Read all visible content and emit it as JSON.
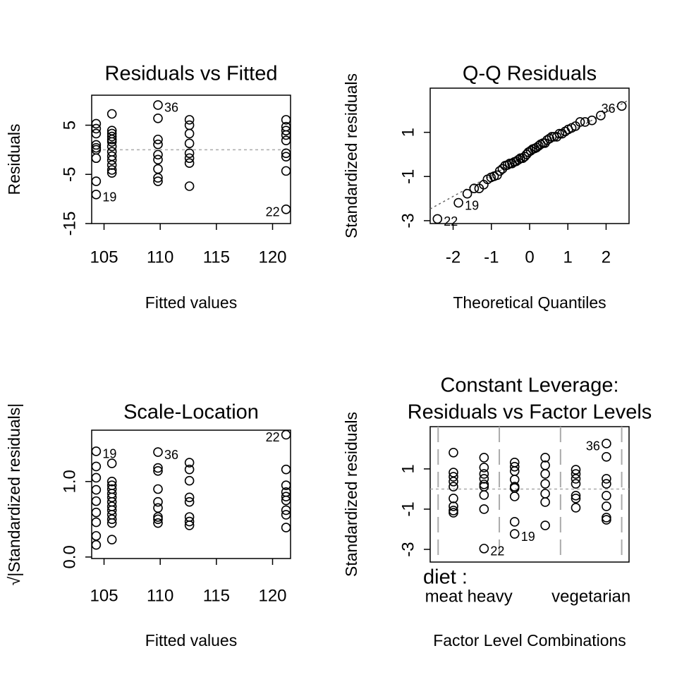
{
  "chart_data": [
    {
      "type": "scatter",
      "title": "Residuals vs Fitted",
      "xlabel": "Fitted values",
      "ylabel": "Residuals",
      "color": "#000000",
      "x": [
        104.3,
        104.3,
        104.3,
        104.3,
        104.3,
        104.3,
        104.3,
        104.3,
        104.3,
        105.7,
        105.7,
        105.7,
        105.7,
        105.7,
        105.7,
        105.7,
        105.7,
        105.7,
        105.7,
        105.7,
        105.7,
        105.7,
        109.8,
        109.8,
        109.8,
        109.8,
        109.8,
        109.8,
        109.8,
        109.8,
        109.8,
        112.6,
        112.6,
        112.6,
        112.6,
        112.6,
        112.6,
        112.6,
        112.6,
        121.2,
        121.2,
        121.2,
        121.2,
        121.2,
        121.2,
        121.2,
        121.2,
        121.2
      ],
      "values": [
        5.3,
        4.3,
        3.3,
        1.0,
        0.4,
        0,
        -1.7,
        -6.4,
        -9.1,
        7.3,
        3.9,
        3.3,
        2.7,
        2.1,
        1.6,
        0.7,
        -0.4,
        -1.3,
        -2.1,
        -3.1,
        -4.1,
        -4.7,
        9.1,
        6.4,
        2.1,
        1.1,
        -1.0,
        -2.0,
        -3.9,
        -5.7,
        -6.4,
        6.1,
        5.0,
        3.3,
        1.3,
        -0.7,
        -1.7,
        -2.7,
        -7.4,
        6.1,
        4.7,
        3.9,
        3.0,
        1.9,
        -0.7,
        -1.4,
        -4.3,
        -12.1
      ],
      "xlim": [
        103.9,
        121.6
      ],
      "ylim": [
        -15,
        11.1
      ],
      "xticks": [
        105,
        110,
        115,
        120
      ],
      "yticks": [
        -15,
        -5,
        5
      ],
      "hline": 0,
      "annotations": [
        {
          "text": "36",
          "x": 109.8,
          "y": 9.1,
          "side": "right"
        },
        {
          "text": "19",
          "x": 104.3,
          "y": -9.1,
          "side": "right"
        },
        {
          "text": "22",
          "x": 121.2,
          "y": -12.1,
          "side": "left"
        }
      ]
    },
    {
      "type": "scatter",
      "title": "Q-Q Residuals",
      "xlabel": "Theoretical Quantiles",
      "ylabel": "Standardized residuals",
      "color": "#000000",
      "x": [
        -2.41,
        -1.86,
        -1.63,
        -1.45,
        -1.32,
        -1.2,
        -1.1,
        -1.01,
        -0.93,
        -0.85,
        -0.78,
        -0.71,
        -0.64,
        -0.58,
        -0.52,
        -0.46,
        -0.4,
        -0.35,
        -0.29,
        -0.24,
        -0.18,
        -0.13,
        -0.08,
        -0.03,
        0.03,
        0.08,
        0.13,
        0.18,
        0.24,
        0.29,
        0.35,
        0.4,
        0.46,
        0.52,
        0.58,
        0.64,
        0.71,
        0.78,
        0.85,
        0.93,
        1.01,
        1.1,
        1.2,
        1.32,
        1.45,
        1.63,
        1.86,
        2.41
      ],
      "values": [
        -2.92,
        -2.19,
        -1.78,
        -1.54,
        -1.54,
        -1.37,
        -1.13,
        -1.04,
        -0.99,
        -0.94,
        -0.75,
        -0.65,
        -0.51,
        -0.48,
        -0.41,
        -0.41,
        -0.34,
        -0.31,
        -0.24,
        -0.17,
        -0.17,
        -0.1,
        0,
        0.1,
        0.17,
        0.24,
        0.27,
        0.31,
        0.39,
        0.46,
        0.51,
        0.51,
        0.65,
        0.72,
        0.8,
        0.8,
        0.8,
        0.94,
        0.94,
        1.04,
        1.13,
        1.2,
        1.28,
        1.47,
        1.47,
        1.54,
        1.76,
        2.19
      ],
      "xlim": [
        -2.6,
        2.6
      ],
      "ylim": [
        -3.13,
        3.0
      ],
      "xticks": [
        -2,
        -1,
        0,
        1,
        2
      ],
      "yticks": [
        -3,
        -1,
        1
      ],
      "qq_line": {
        "intercept": 0,
        "slope": 0.95
      },
      "annotations": [
        {
          "text": "36",
          "x": 2.41,
          "y": 2.19,
          "side": "left"
        },
        {
          "text": "19",
          "x": -1.86,
          "y": -2.19,
          "side": "right"
        },
        {
          "text": "22",
          "x": -2.41,
          "y": -2.92,
          "side": "right"
        }
      ]
    },
    {
      "type": "scatter",
      "title": "Scale-Location",
      "xlabel": "Fitted values",
      "ylabel": "√|Standardized residuals|",
      "color": "#000000",
      "x": [
        104.3,
        104.3,
        104.3,
        104.3,
        104.3,
        104.3,
        104.3,
        104.3,
        104.3,
        105.7,
        105.7,
        105.7,
        105.7,
        105.7,
        105.7,
        105.7,
        105.7,
        105.7,
        105.7,
        105.7,
        105.7,
        105.7,
        109.8,
        109.8,
        109.8,
        109.8,
        109.8,
        109.8,
        109.8,
        109.8,
        109.8,
        112.6,
        112.6,
        112.6,
        112.6,
        112.6,
        112.6,
        112.6,
        112.6,
        121.2,
        121.2,
        121.2,
        121.2,
        121.2,
        121.2,
        121.2,
        121.2,
        121.2
      ],
      "values": [
        1.4,
        1.2,
        1.05,
        0.89,
        0.74,
        0.59,
        0.46,
        0.28,
        0.16,
        1.24,
        1.0,
        0.95,
        0.9,
        0.84,
        0.79,
        0.73,
        0.67,
        0.62,
        0.56,
        0.5,
        0.45,
        0.23,
        1.39,
        1.18,
        1.14,
        0.9,
        0.73,
        0.65,
        0.53,
        0.5,
        0.45,
        1.25,
        1.16,
        1.01,
        0.79,
        0.73,
        0.53,
        0.47,
        0.42,
        1.62,
        1.16,
        0.95,
        0.86,
        0.8,
        0.75,
        0.62,
        0.56,
        0.39
      ],
      "xlim": [
        103.9,
        121.6
      ],
      "ylim": [
        -0.02,
        1.68
      ],
      "xticks": [
        105,
        110,
        115,
        120
      ],
      "yticks": [
        {
          "value": 0,
          "label": "0.0"
        },
        {
          "value": 1,
          "label": "1.0"
        }
      ],
      "annotations": [
        {
          "text": "19",
          "x": 104.3,
          "y": 1.4,
          "side": "right"
        },
        {
          "text": "36",
          "x": 109.8,
          "y": 1.39,
          "side": "right"
        },
        {
          "text": "22",
          "x": 121.2,
          "y": 1.62,
          "side": "left"
        }
      ]
    },
    {
      "type": "scatter",
      "title": [
        "Constant Leverage:",
        "Residuals vs Factor Levels"
      ],
      "xlabel": "Factor Level Combinations",
      "ylabel": "Standardized residuals",
      "color": "#000000",
      "factor_label": "diet :",
      "categories": [
        "meat heavy",
        null,
        "vegetarian"
      ],
      "groups": [
        [
          1.81,
          0.82,
          0.61,
          0.37,
          0.12,
          -0.47,
          -0.86,
          -1.07,
          -1.18
        ],
        [
          1.56,
          1.07,
          0.75,
          0.51,
          0.23,
          0.12,
          -0.3,
          -1.0,
          -2.96
        ],
        [
          1.32,
          1.11,
          0.89,
          0.47,
          0.12,
          0.05,
          -0.37,
          -1.63,
          -2.23
        ],
        [
          1.56,
          1.18,
          0.75,
          0.26,
          -0.23,
          -0.65,
          -1.81
        ],
        [
          0.96,
          0.75,
          0.51,
          0.26,
          -0.33,
          -0.47,
          -0.93
        ],
        [
          2.26,
          1.6,
          0.51,
          0.26,
          -0.33,
          -0.86,
          -1.42,
          -1.53
        ]
      ],
      "xlim": [
        0.24,
        6.74
      ],
      "ylim": [
        -3.63,
        3.1
      ],
      "yticks": [
        -3,
        -1,
        1
      ],
      "hline": 0,
      "annotations": [
        {
          "text": "22",
          "x": 2,
          "y": -2.96,
          "side": "right"
        },
        {
          "text": "19",
          "x": 3,
          "y": -2.23,
          "side": "right"
        },
        {
          "text": "36",
          "x": 6,
          "y": 2.26,
          "side": "left"
        }
      ]
    }
  ]
}
